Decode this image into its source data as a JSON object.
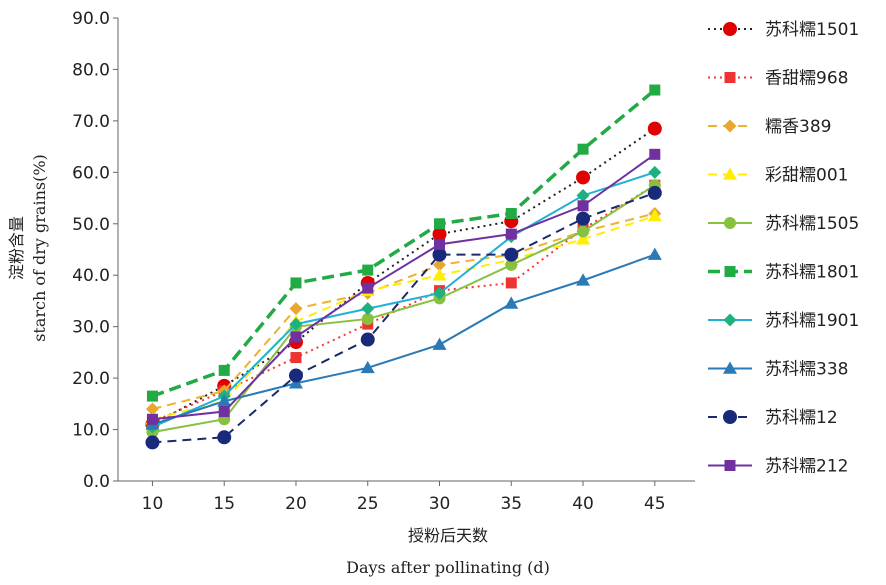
{
  "chart_data": {
    "type": "line",
    "xlabel_cn": "授粉后天数",
    "xlabel_en": "Days after pollinating (d)",
    "ylabel_cn": "淀粉含量",
    "ylabel_en": "starch of dry grains(%)",
    "ylim": [
      0,
      90
    ],
    "yticks": [
      "0.0",
      "10.0",
      "20.0",
      "30.0",
      "40.0",
      "50.0",
      "60.0",
      "70.0",
      "80.0",
      "90.0"
    ],
    "x": [
      10,
      15,
      20,
      25,
      30,
      35,
      40,
      45
    ],
    "xticks": [
      "10",
      "15",
      "20",
      "25",
      "30",
      "35",
      "40",
      "45"
    ],
    "legend_position": "right",
    "series": [
      {
        "name": "苏科糯1501",
        "color": "#222222",
        "dash": "2,4",
        "marker": "circle-large",
        "marker_color": "#e00000",
        "width": 2,
        "values": [
          11.0,
          18.5,
          27.0,
          38.5,
          48.0,
          50.5,
          59.0,
          68.5
        ]
      },
      {
        "name": "香甜糯968",
        "color": "#ff3333",
        "dash": "2,4",
        "marker": "square",
        "marker_color": "#ee3333",
        "width": 2,
        "values": [
          11.5,
          17.5,
          24.0,
          30.5,
          37.0,
          38.5,
          49.0,
          57.5
        ]
      },
      {
        "name": "糯香389",
        "color": "#f0b030",
        "dash": "9,6",
        "marker": "diamond",
        "marker_color": "#e8a830",
        "width": 2,
        "values": [
          14.0,
          17.5,
          33.5,
          36.5,
          42.0,
          44.0,
          48.5,
          52.0
        ]
      },
      {
        "name": "彩甜糯001",
        "color": "#ffee00",
        "dash": "9,6",
        "marker": "triangle",
        "marker_color": "#ffee00",
        "width": 2,
        "values": [
          12.0,
          15.5,
          31.0,
          37.0,
          40.0,
          43.0,
          47.0,
          51.5
        ]
      },
      {
        "name": "苏科糯1505",
        "color": "#88c040",
        "dash": "",
        "marker": "circle",
        "marker_color": "#88c040",
        "width": 2,
        "values": [
          9.5,
          12.0,
          30.0,
          31.5,
          35.5,
          42.0,
          48.5,
          57.5
        ]
      },
      {
        "name": "苏科糯1801",
        "color": "#22aa44",
        "dash": "12,6",
        "marker": "square",
        "marker_color": "#22aa44",
        "width": 3.5,
        "values": [
          16.5,
          21.5,
          38.5,
          41.0,
          50.0,
          52.0,
          64.5,
          76.0
        ]
      },
      {
        "name": "苏科糯1901",
        "color": "#22b0d8",
        "dash": "",
        "marker": "diamond",
        "marker_color": "#20b080",
        "width": 2,
        "values": [
          10.5,
          16.5,
          30.5,
          33.5,
          36.5,
          47.5,
          55.5,
          60.0
        ]
      },
      {
        "name": "苏科糯338",
        "color": "#2a7ab8",
        "dash": "",
        "marker": "triangle",
        "marker_color": "#2a7ab8",
        "width": 2,
        "values": [
          11.0,
          15.5,
          19.0,
          22.0,
          26.5,
          34.5,
          39.0,
          44.0
        ]
      },
      {
        "name": "苏科糯12",
        "color": "#1a2a6a",
        "dash": "9,6",
        "marker": "circle-large",
        "marker_color": "#1a2a7a",
        "width": 2,
        "values": [
          7.5,
          8.5,
          20.5,
          27.5,
          44.0,
          44.0,
          51.0,
          56.0
        ]
      },
      {
        "name": "苏科糯212",
        "color": "#7030a0",
        "dash": "",
        "marker": "square",
        "marker_color": "#7030a0",
        "width": 2,
        "values": [
          12.0,
          13.5,
          28.0,
          37.5,
          46.0,
          48.0,
          53.5,
          63.5
        ]
      }
    ]
  }
}
